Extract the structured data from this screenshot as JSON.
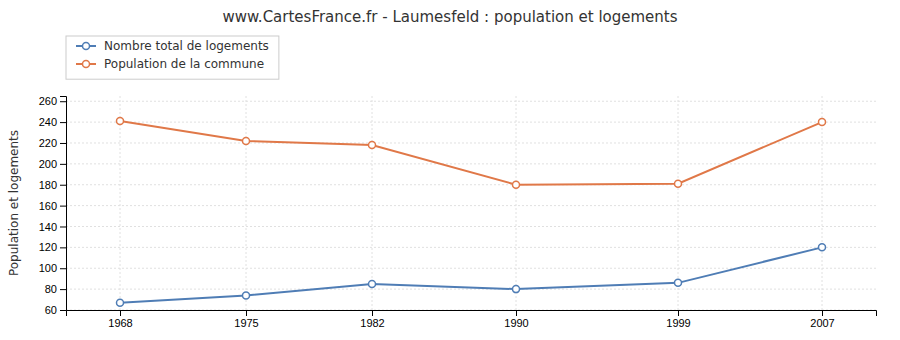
{
  "chart_data": {
    "type": "line",
    "title": "www.CartesFrance.fr - Laumesfeld : population et logements",
    "ylabel": "Population et logements",
    "x": [
      1968,
      1975,
      1982,
      1990,
      1999,
      2007
    ],
    "series": [
      {
        "name": "Nombre total de logements",
        "color": "#4f7db5",
        "marker": "circle",
        "values": [
          67,
          74,
          85,
          80,
          86,
          120
        ]
      },
      {
        "name": "Population de la commune",
        "color": "#e07848",
        "marker": "circle",
        "values": [
          241,
          222,
          218,
          180,
          181,
          240
        ]
      }
    ],
    "xlim": [
      1965,
      2010
    ],
    "xticks": [
      1968,
      1975,
      1982,
      1990,
      1999,
      2007
    ],
    "ylim": [
      60,
      265
    ],
    "yticks": [
      60,
      80,
      100,
      120,
      140,
      160,
      180,
      200,
      220,
      240,
      260
    ],
    "grid": true,
    "legend": "top-left"
  }
}
